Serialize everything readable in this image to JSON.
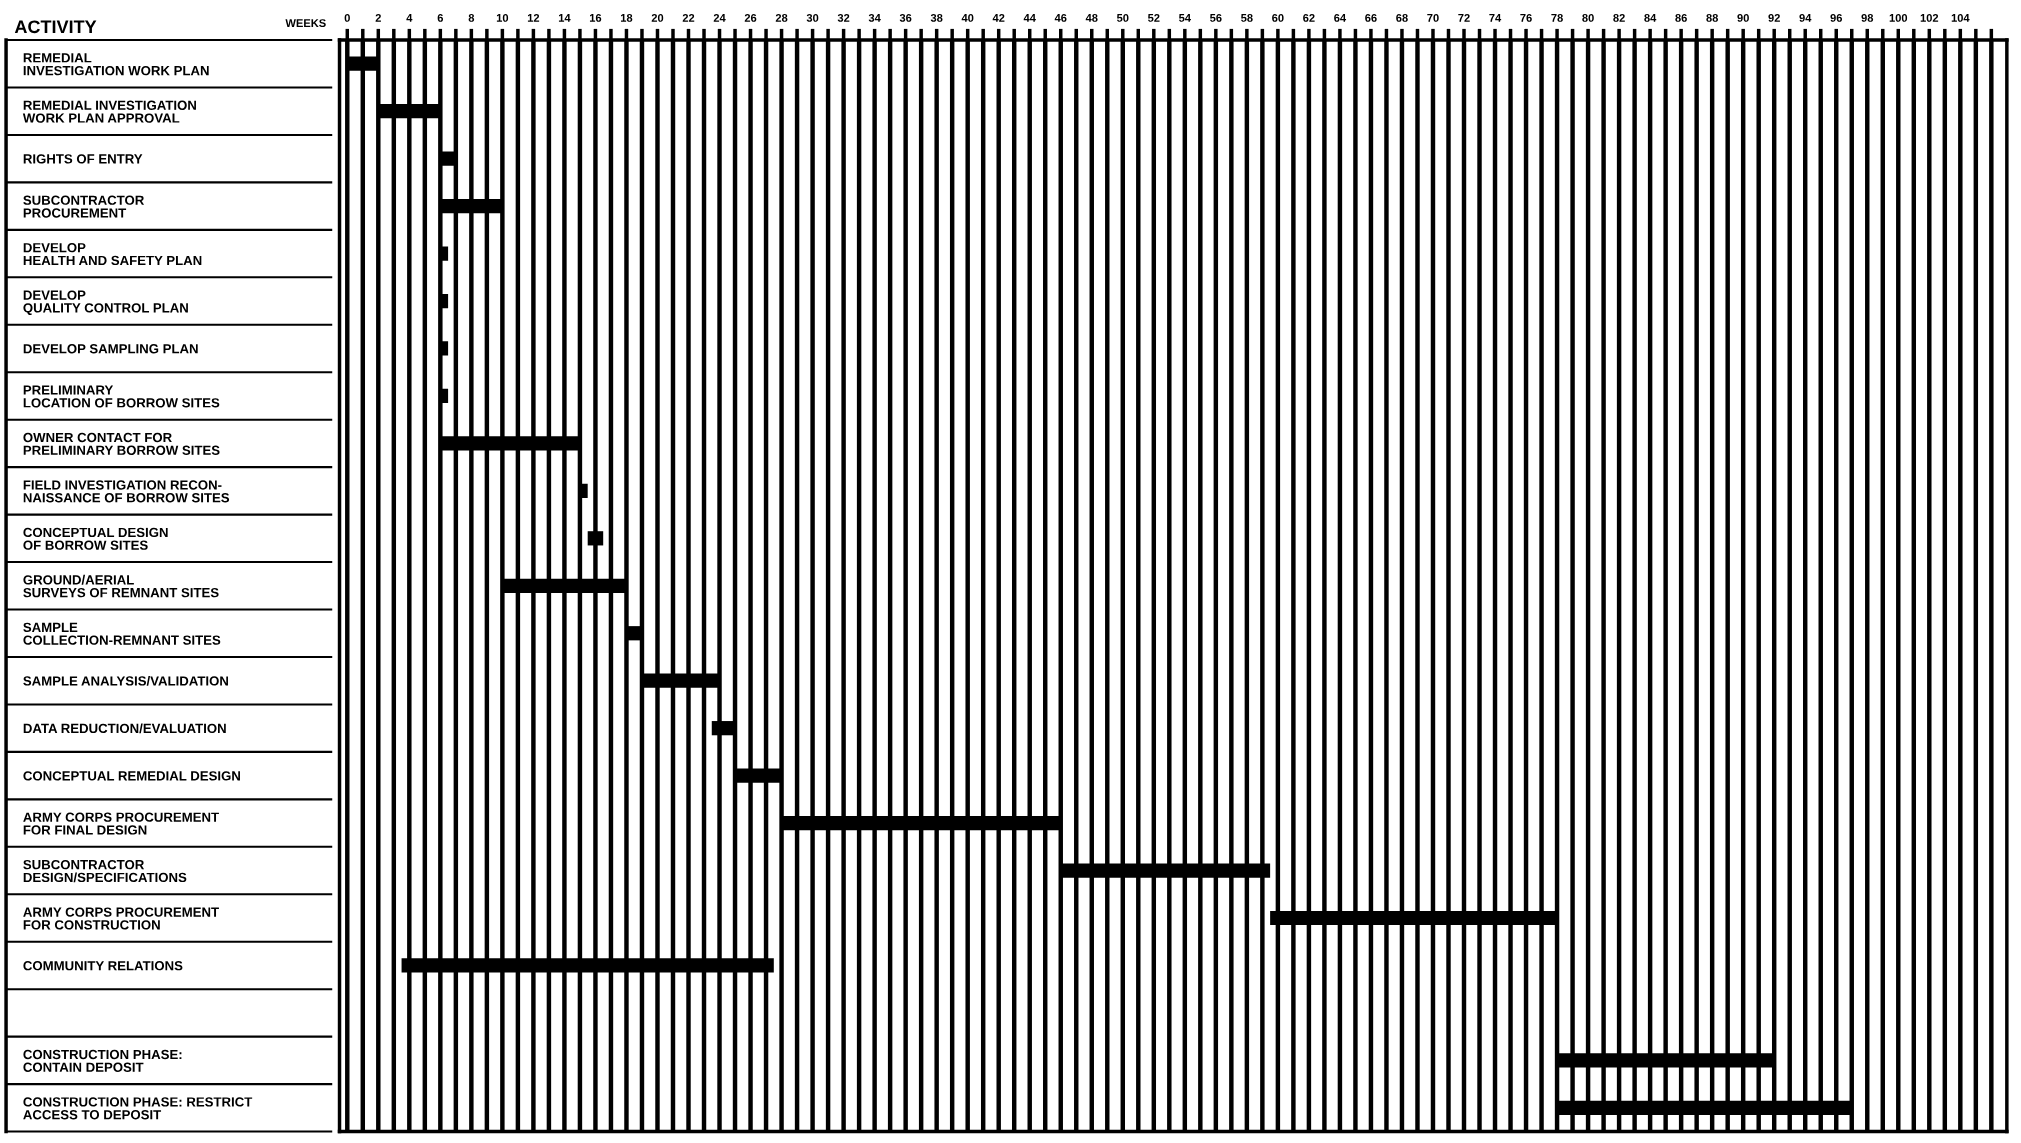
{
  "chart_data": {
    "type": "bar",
    "orientation": "horizontal",
    "xlabel": "WEEKS",
    "ylabel": "ACTIVITY",
    "categories": [
      "REMEDIAL\nINVESTIGATION WORK PLAN",
      "REMEDIAL INVESTIGATION\nWORK PLAN APPROVAL",
      "RIGHTS OF ENTRY",
      "SUBCONTRACTOR\nPROCUREMENT",
      "DEVELOP\nHEALTH AND SAFETY PLAN",
      "DEVELOP\nQUALITY CONTROL PLAN",
      "DEVELOP SAMPLING PLAN",
      "PRELIMINARY\nLOCATION OF BORROW SITES",
      "OWNER CONTACT FOR\nPRELIMINARY BORROW SITES",
      "FIELD INVESTIGATION RECON-\nNAISSANCE OF BORROW SITES",
      "CONCEPTUAL DESIGN\nOF BORROW SITES",
      "GROUND/AERIAL\nSURVEYS OF REMNANT SITES",
      "SAMPLE\nCOLLECTION-REMNANT SITES",
      "SAMPLE ANALYSIS/VALIDATION",
      "DATA REDUCTION/EVALUATION",
      "CONCEPTUAL REMEDIAL DESIGN",
      "ARMY CORPS PROCUREMENT\nFOR FINAL DESIGN",
      "SUBCONTRACTOR\nDESIGN/SPECIFICATIONS",
      "ARMY CORPS PROCUREMENT\nFOR CONSTRUCTION",
      "COMMUNITY RELATIONS",
      null,
      "CONSTRUCTION PHASE:\nCONTAIN DEPOSIT",
      "CONSTRUCTION PHASE: RESTRICT\nACCESS TO DEPOSIT"
    ],
    "base": [
      0,
      2,
      6,
      6,
      6,
      6,
      6,
      6,
      6,
      15,
      15.5,
      10,
      18,
      19,
      23.5,
      25,
      28,
      46,
      59.5,
      3.5,
      null,
      78,
      78
    ],
    "values": [
      2,
      4,
      1,
      4,
      0.5,
      0.5,
      0.5,
      0.5,
      9,
      0.5,
      1,
      8,
      1,
      5,
      1.5,
      3,
      18,
      13.5,
      18.5,
      24,
      null,
      14,
      19
    ],
    "color": "#000000",
    "xlim": [
      -0.5,
      107
    ],
    "xticks": [
      0,
      {
        "value": 1,
        "label": null
      },
      2,
      {
        "value": 3,
        "label": null
      },
      4,
      {
        "value": 5,
        "label": null
      },
      6,
      {
        "value": 7,
        "label": null
      },
      8,
      {
        "value": 9,
        "label": null
      },
      10,
      {
        "value": 11,
        "label": null
      },
      12,
      {
        "value": 13,
        "label": null
      },
      14,
      {
        "value": 15,
        "label": null
      },
      16,
      {
        "value": 17,
        "label": null
      },
      18,
      {
        "value": 19,
        "label": null
      },
      20,
      {
        "value": 21,
        "label": null
      },
      22,
      {
        "value": 23,
        "label": null
      },
      24,
      {
        "value": 25,
        "label": null
      },
      26,
      {
        "value": 27,
        "label": null
      },
      28,
      {
        "value": 29,
        "label": null
      },
      30,
      {
        "value": 31,
        "label": null
      },
      32,
      {
        "value": 33,
        "label": null
      },
      34,
      {
        "value": 35,
        "label": null
      },
      36,
      {
        "value": 37,
        "label": null
      },
      38,
      {
        "value": 39,
        "label": null
      },
      40,
      {
        "value": 41,
        "label": null
      },
      42,
      {
        "value": 43,
        "label": null
      },
      44,
      {
        "value": 45,
        "label": null
      },
      46,
      {
        "value": 47,
        "label": null
      },
      48,
      {
        "value": 49,
        "label": null
      },
      50,
      {
        "value": 51,
        "label": null
      },
      52,
      {
        "value": 53,
        "label": null
      },
      54,
      {
        "value": 55,
        "label": null
      },
      56,
      {
        "value": 57,
        "label": null
      },
      58,
      {
        "value": 59,
        "label": null
      },
      60,
      {
        "value": 61,
        "label": null
      },
      62,
      {
        "value": 63,
        "label": null
      },
      64,
      {
        "value": 65,
        "label": null
      },
      66,
      {
        "value": 67,
        "label": null
      },
      68,
      {
        "value": 69,
        "label": null
      },
      70,
      {
        "value": 71,
        "label": null
      },
      72,
      {
        "value": 73,
        "label": null
      },
      74,
      {
        "value": 75,
        "label": null
      },
      76,
      {
        "value": 77,
        "label": null
      },
      78,
      {
        "value": 79,
        "label": null
      },
      80,
      {
        "value": 81,
        "label": null
      },
      82,
      {
        "value": 83,
        "label": null
      },
      84,
      {
        "value": 85,
        "label": null
      },
      86,
      {
        "value": 87,
        "label": null
      },
      88,
      {
        "value": 89,
        "label": null
      },
      90,
      {
        "value": 91,
        "label": null
      },
      92,
      {
        "value": 93,
        "label": null
      },
      94,
      {
        "value": 95,
        "label": null
      },
      96,
      {
        "value": 97,
        "label": null
      },
      98,
      {
        "value": 99,
        "label": null
      },
      100,
      {
        "value": 101,
        "label": null
      },
      102,
      {
        "value": 103,
        "label": null
      },
      104,
      {
        "value": 105,
        "label": null
      },
      {
        "value": 106,
        "label": null
      }
    ],
    "grid": "x",
    "tick_labels": "xy",
    "legend": false
  }
}
